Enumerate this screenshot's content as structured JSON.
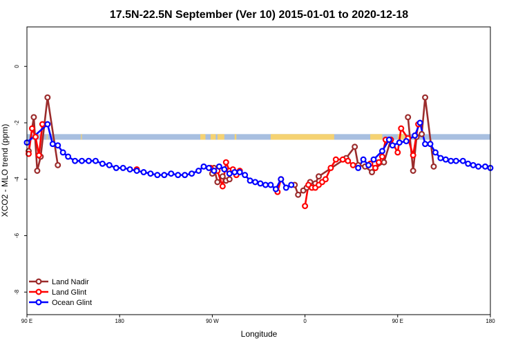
{
  "chart_data": {
    "type": "line",
    "title": "17.5N-22.5N September (Ver 10)   2015-01-01 to 2020-12-18",
    "xlabel": "Longitude",
    "ylabel": "XCO2 - MLO trend (ppm)",
    "xlim": [
      -90,
      180
    ],
    "ylim": [
      -8.8,
      1.4
    ],
    "x_ticks": [
      {
        "value": -90,
        "label": "90 E"
      },
      {
        "value": -36,
        "label": "180"
      },
      {
        "value": 18,
        "label": "90 W"
      },
      {
        "value": 72,
        "label": "0"
      },
      {
        "value": 126,
        "label": "90 E"
      },
      {
        "value": 180,
        "label": "180"
      }
    ],
    "y_ticks": [
      {
        "value": 0,
        "label": "0"
      },
      {
        "value": -2,
        "label": "-2"
      },
      {
        "value": -4,
        "label": "-4"
      },
      {
        "value": -6,
        "label": "-6"
      },
      {
        "value": -8,
        "label": "-8"
      }
    ],
    "land_ocean_band": {
      "y_top": -2.4,
      "y_bottom": -2.6,
      "ocean_color": "#a8bfe0",
      "land_color": "#f5d272"
    },
    "legend": {
      "position": "bottom-left",
      "entries": [
        "Land Nadir",
        "Land Glint",
        "Ocean Glint"
      ]
    },
    "series": [
      {
        "name": "Land Nadir",
        "color": "#9b2c2c",
        "segments": [
          [
            [
              -89,
              -3.0
            ],
            [
              -86,
              -1.8
            ],
            [
              -84,
              -3.7
            ],
            [
              -82,
              -3.2
            ],
            [
              -78,
              -1.1
            ],
            [
              -72,
              -3.5
            ]
          ],
          [
            [
              18,
              -3.8
            ],
            [
              19,
              -3.6
            ],
            [
              21,
              -4.1
            ],
            [
              24,
              -3.9
            ],
            [
              26,
              -4.05
            ],
            [
              28,
              -4.0
            ]
          ],
          [
            [
              66,
              -4.2
            ],
            [
              68,
              -4.55
            ],
            [
              71,
              -4.4
            ],
            [
              73,
              -4.3
            ],
            [
              75,
              -4.1
            ],
            [
              78,
              -4.15
            ],
            [
              80,
              -3.9
            ],
            [
              96,
              -3.25
            ],
            [
              101,
              -2.85
            ],
            [
              103,
              -3.5
            ],
            [
              107,
              -3.55
            ],
            [
              111,
              -3.75
            ],
            [
              113,
              -3.6
            ],
            [
              118,
              -3.4
            ],
            [
              122,
              -2.6
            ]
          ],
          [
            [
              132,
              -1.8
            ],
            [
              135,
              -3.7
            ],
            [
              137,
              -2.5
            ],
            [
              140,
              -2.4
            ],
            [
              142,
              -1.1
            ],
            [
              147,
              -3.55
            ]
          ]
        ]
      },
      {
        "name": "Land Glint",
        "color": "#ff0000",
        "segments": [
          [
            [
              -89,
              -3.1
            ],
            [
              -87,
              -2.2
            ],
            [
              -85,
              -2.5
            ],
            [
              -83,
              -3.15
            ],
            [
              -81,
              -2.05
            ]
          ],
          [
            [
              -26,
              -3.65
            ]
          ],
          [
            [
              17,
              -3.6
            ],
            [
              21,
              -3.7
            ],
            [
              24,
              -4.25
            ],
            [
              26,
              -3.4
            ],
            [
              28,
              -3.7
            ],
            [
              30,
              -3.65
            ],
            [
              32,
              -3.85
            ],
            [
              34,
              -3.7
            ]
          ],
          [
            [
              56,
              -4.45
            ],
            [
              58,
              -4.0
            ]
          ],
          [
            [
              72,
              -4.95
            ],
            [
              74,
              -4.2
            ],
            [
              76,
              -4.3
            ],
            [
              78,
              -4.3
            ],
            [
              80,
              -4.2
            ],
            [
              82,
              -4.1
            ],
            [
              84,
              -4.0
            ],
            [
              87,
              -3.6
            ],
            [
              90,
              -3.3
            ],
            [
              94,
              -3.3
            ],
            [
              97,
              -3.35
            ],
            [
              100,
              -3.5
            ]
          ],
          [
            [
              110,
              -3.45
            ],
            [
              113,
              -3.6
            ],
            [
              115,
              -3.4
            ],
            [
              117,
              -3.2
            ],
            [
              119,
              -2.6
            ],
            [
              122,
              -2.6
            ],
            [
              126,
              -3.05
            ],
            [
              128,
              -2.2
            ],
            [
              132,
              -2.55
            ],
            [
              135,
              -3.15
            ],
            [
              138,
              -2.05
            ]
          ]
        ]
      },
      {
        "name": "Ocean Glint",
        "color": "#0000ff",
        "segments": [
          [
            [
              -90,
              -2.7
            ],
            [
              -78,
              -2.05
            ],
            [
              -75,
              -2.75
            ],
            [
              -72,
              -2.8
            ],
            [
              -69,
              -3.05
            ],
            [
              -66,
              -3.2
            ],
            [
              -62,
              -3.35
            ],
            [
              -58,
              -3.35
            ],
            [
              -54,
              -3.35
            ],
            [
              -50,
              -3.35
            ],
            [
              -46,
              -3.45
            ],
            [
              -42,
              -3.5
            ],
            [
              -38,
              -3.6
            ],
            [
              -34,
              -3.6
            ],
            [
              -30,
              -3.65
            ],
            [
              -26,
              -3.7
            ],
            [
              -22,
              -3.75
            ],
            [
              -18,
              -3.8
            ],
            [
              -14,
              -3.85
            ],
            [
              -10,
              -3.85
            ],
            [
              -6,
              -3.8
            ],
            [
              -2,
              -3.85
            ],
            [
              2,
              -3.85
            ],
            [
              6,
              -3.8
            ],
            [
              10,
              -3.7
            ],
            [
              13,
              -3.55
            ],
            [
              16,
              -3.6
            ],
            [
              19,
              -3.7
            ],
            [
              22,
              -3.55
            ],
            [
              25,
              -3.65
            ],
            [
              28,
              -3.8
            ],
            [
              31,
              -3.75
            ],
            [
              34,
              -3.75
            ],
            [
              37,
              -3.85
            ],
            [
              40,
              -4.05
            ],
            [
              43,
              -4.1
            ],
            [
              46,
              -4.15
            ],
            [
              49,
              -4.2
            ],
            [
              52,
              -4.2
            ],
            [
              55,
              -4.35
            ],
            [
              58,
              -4.0
            ],
            [
              61,
              -4.3
            ],
            [
              64,
              -4.2
            ]
          ],
          [
            [
              103,
              -3.6
            ],
            [
              106,
              -3.3
            ],
            [
              109,
              -3.5
            ],
            [
              112,
              -3.3
            ],
            [
              117,
              -3.0
            ],
            [
              121,
              -2.6
            ],
            [
              123,
              -2.8
            ],
            [
              127,
              -2.7
            ],
            [
              131,
              -2.65
            ],
            [
              136,
              -2.45
            ],
            [
              139,
              -2.0
            ],
            [
              142,
              -2.75
            ],
            [
              145,
              -2.75
            ],
            [
              148,
              -3.05
            ],
            [
              151,
              -3.25
            ],
            [
              154,
              -3.3
            ],
            [
              157,
              -3.35
            ],
            [
              160,
              -3.35
            ],
            [
              164,
              -3.35
            ],
            [
              167,
              -3.45
            ],
            [
              170,
              -3.5
            ],
            [
              173,
              -3.55
            ],
            [
              177,
              -3.55
            ],
            [
              180,
              -3.6
            ]
          ]
        ]
      }
    ]
  }
}
